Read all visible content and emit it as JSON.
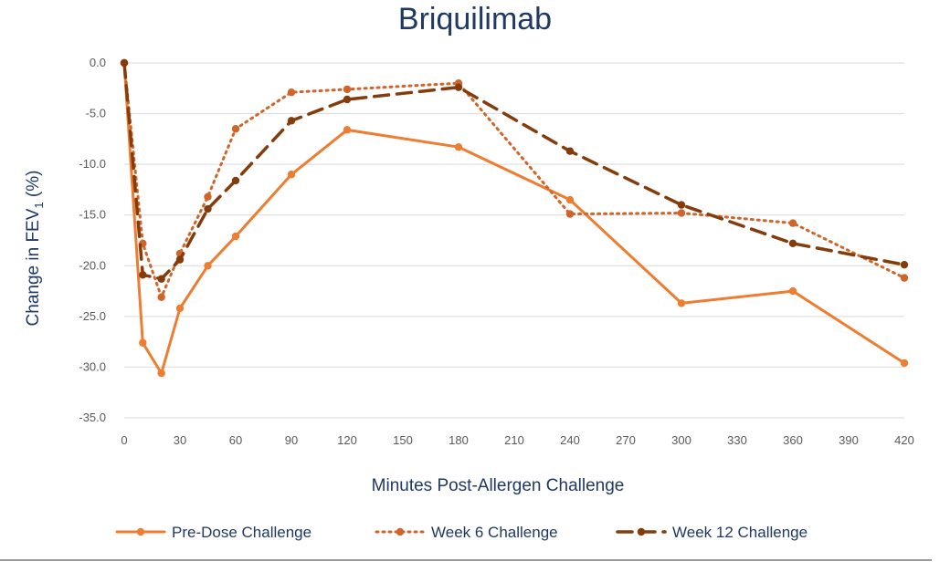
{
  "chart_data": {
    "type": "line",
    "title": "Briquilimab",
    "xlabel": "Minutes Post-Allergen Challenge",
    "ylabel_main": "Change in FEV",
    "ylabel_sub": "1",
    "ylabel_unit": " (%)",
    "xlim": [
      0,
      420
    ],
    "ylim": [
      -35,
      0
    ],
    "x_ticks": [
      0,
      30,
      60,
      90,
      120,
      150,
      180,
      210,
      240,
      270,
      300,
      330,
      360,
      390,
      420
    ],
    "y_ticks": [
      0,
      -5,
      -10,
      -15,
      -20,
      -25,
      -30,
      -35
    ],
    "y_tick_labels": [
      "0.0",
      "-5.0",
      "-10.0",
      "-15.0",
      "-20.0",
      "-25.0",
      "-30.0",
      "-35.0"
    ],
    "grid": true,
    "legend_position": "bottom",
    "series": [
      {
        "name": "Pre-Dose Challenge",
        "color": "#ed7d31",
        "style": "solid",
        "x": [
          0,
          10,
          20,
          30,
          45,
          60,
          90,
          120,
          180,
          240,
          300,
          360,
          420
        ],
        "y": [
          0,
          -27.6,
          -30.6,
          -24.2,
          -20.0,
          -17.1,
          -11.0,
          -6.6,
          -8.3,
          -13.5,
          -23.7,
          -22.5,
          -29.6
        ]
      },
      {
        "name": "Week 6 Challenge",
        "color": "#d0652b",
        "style": "dotted",
        "x": [
          0,
          10,
          20,
          30,
          45,
          60,
          90,
          120,
          180,
          240,
          300,
          360,
          420
        ],
        "y": [
          0,
          -17.8,
          -23.1,
          -18.8,
          -13.2,
          -6.5,
          -2.9,
          -2.6,
          -2.0,
          -14.9,
          -14.8,
          -15.8,
          -21.2
        ]
      },
      {
        "name": "Week 12 Challenge",
        "color": "#843c0c",
        "style": "dashed",
        "x": [
          0,
          10,
          20,
          30,
          45,
          60,
          90,
          120,
          180,
          240,
          300,
          360,
          420
        ],
        "y": [
          0,
          -20.9,
          -21.3,
          -19.4,
          -14.4,
          -11.6,
          -5.7,
          -3.6,
          -2.4,
          -8.7,
          -14.0,
          -17.8,
          -19.9
        ]
      }
    ]
  }
}
